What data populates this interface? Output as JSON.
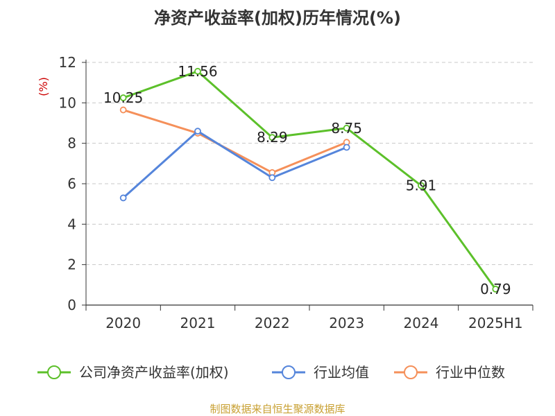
{
  "chart_data": {
    "type": "line",
    "title": "净资产收益率(加权)历年情况(%)",
    "ylabel": "(%)",
    "categories": [
      "2020",
      "2021",
      "2022",
      "2023",
      "2024",
      "2025H1"
    ],
    "ylim": [
      0,
      12
    ],
    "yticks": [
      0,
      2,
      4,
      6,
      8,
      10,
      12
    ],
    "grid": true,
    "legend_position": "bottom",
    "series": [
      {
        "name": "公司净资产收益率(加权)",
        "color": "#5cc02a",
        "values": [
          10.25,
          11.56,
          8.29,
          8.75,
          5.91,
          0.79
        ],
        "show_labels": true
      },
      {
        "name": "行业均值",
        "color": "#5585db",
        "values": [
          5.3,
          8.6,
          6.3,
          7.8,
          null,
          null
        ],
        "show_labels": false
      },
      {
        "name": "行业中位数",
        "color": "#f5905a",
        "values": [
          9.65,
          8.5,
          6.55,
          8.05,
          null,
          null
        ],
        "show_labels": false
      }
    ]
  },
  "colors": {
    "unit_label": "#cc0000",
    "source_note": "#c8a032"
  },
  "source_note": "制图数据来自恒生聚源数据库"
}
